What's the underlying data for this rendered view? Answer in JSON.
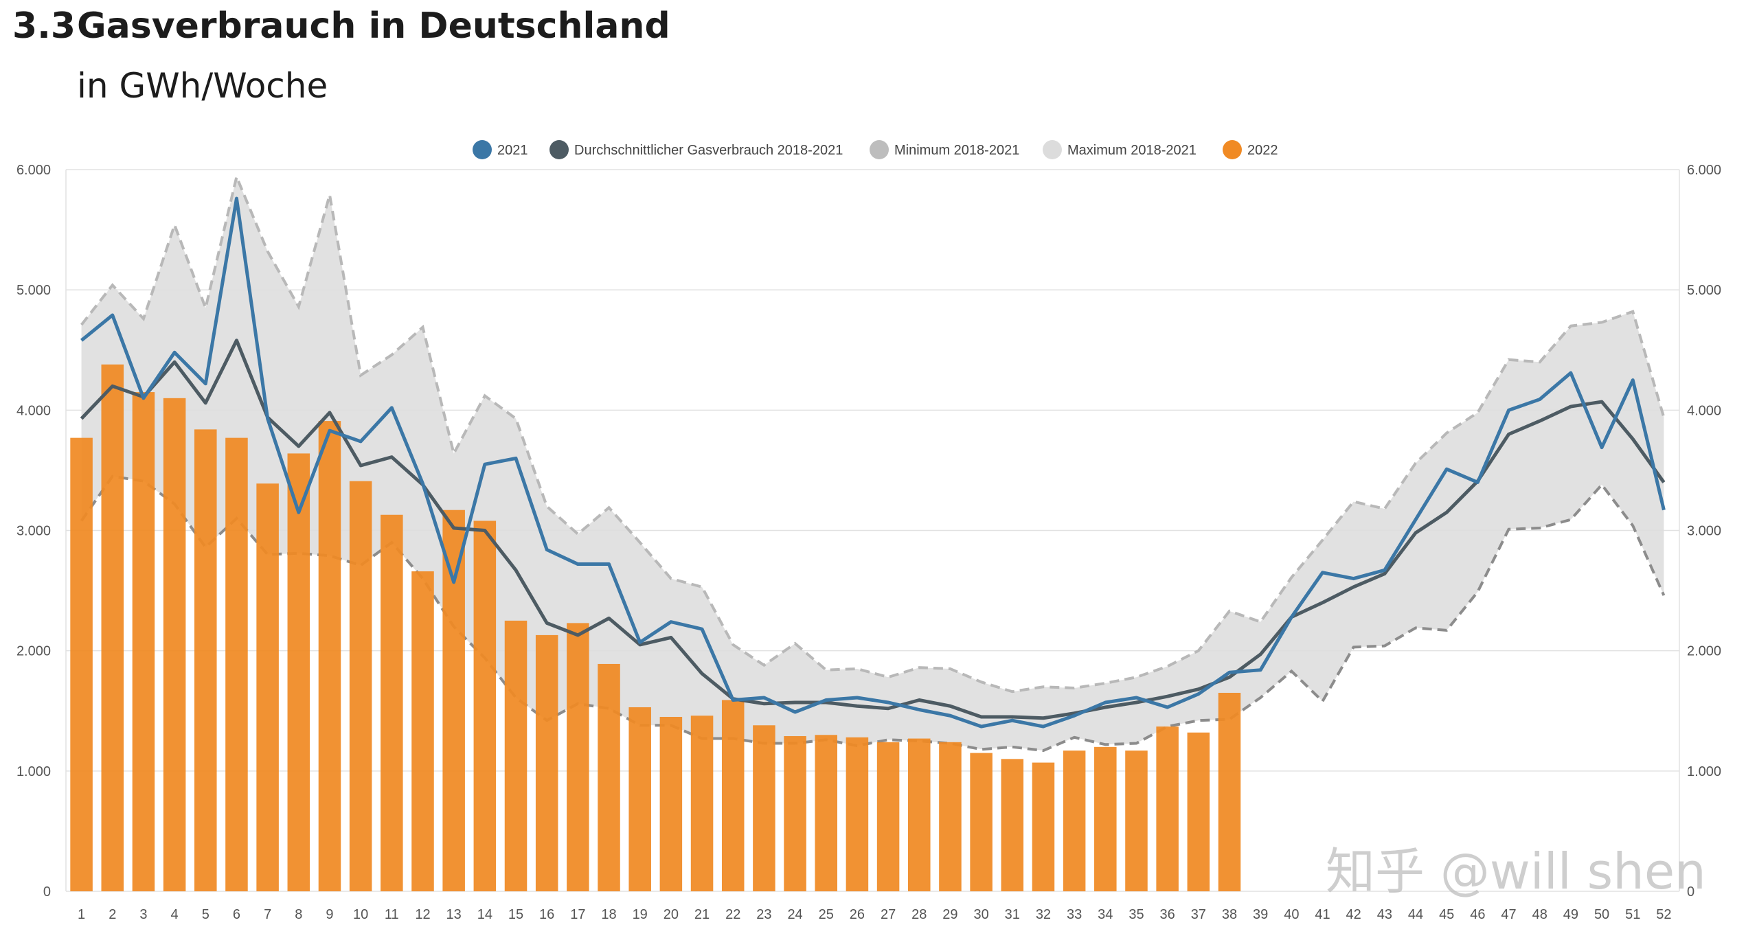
{
  "header": {
    "number": "3.3",
    "title": "Gasverbrauch in Deutschland",
    "subtitle": "in GWh/Woche"
  },
  "watermark": "知乎 @will shen",
  "colors": {
    "s2021": "#3b77a6",
    "avg": "#4d5b63",
    "min": "#bdbdbd",
    "max": "#dcdcdc",
    "s2022": "#f08a24",
    "band": "#dedede",
    "grid": "#e2e2e2",
    "axis_text": "#555555"
  },
  "chart_data": {
    "type": "bar",
    "legend_position": "top-center",
    "grid": true,
    "ylim": [
      0,
      6000
    ],
    "yticks": [
      "0",
      "1.000",
      "2.000",
      "3.000",
      "4.000",
      "5.000",
      "6.000"
    ],
    "ytick_values": [
      0,
      1000,
      2000,
      3000,
      4000,
      5000,
      6000
    ],
    "x": [
      "1",
      "2",
      "3",
      "4",
      "5",
      "6",
      "7",
      "8",
      "9",
      "10",
      "11",
      "12",
      "13",
      "14",
      "15",
      "16",
      "17",
      "18",
      "19",
      "20",
      "21",
      "22",
      "23",
      "24",
      "25",
      "26",
      "27",
      "28",
      "29",
      "30",
      "31",
      "32",
      "33",
      "34",
      "35",
      "36",
      "37",
      "38",
      "39",
      "40",
      "41",
      "42",
      "43",
      "44",
      "45",
      "46",
      "47",
      "48",
      "49",
      "50",
      "51",
      "52"
    ],
    "series": [
      {
        "name": "2021",
        "kind": "line",
        "values": [
          4580,
          4790,
          4100,
          4480,
          4220,
          5760,
          3930,
          3150,
          3830,
          3740,
          4020,
          3390,
          2570,
          3550,
          3600,
          2840,
          2720,
          2720,
          2070,
          2240,
          2180,
          1590,
          1610,
          1490,
          1590,
          1610,
          1570,
          1510,
          1460,
          1370,
          1420,
          1370,
          1460,
          1570,
          1610,
          1530,
          1640,
          1820,
          1840,
          2280,
          2650,
          2600,
          2670,
          3090,
          3510,
          3400,
          4000,
          4090,
          4310,
          3690,
          4250,
          3170
        ]
      },
      {
        "name": "Durchschnittlicher Gasverbrauch 2018-2021",
        "kind": "line",
        "values": [
          3930,
          4200,
          4110,
          4400,
          4060,
          4580,
          3940,
          3700,
          3980,
          3540,
          3610,
          3380,
          3020,
          3000,
          2670,
          2230,
          2130,
          2270,
          2050,
          2110,
          1810,
          1600,
          1560,
          1570,
          1570,
          1540,
          1520,
          1590,
          1540,
          1450,
          1450,
          1440,
          1480,
          1530,
          1570,
          1620,
          1680,
          1780,
          1970,
          2280,
          2400,
          2530,
          2640,
          2980,
          3150,
          3410,
          3800,
          3910,
          4030,
          4070,
          3760,
          3400
        ]
      },
      {
        "name": "Minimum 2018-2021",
        "kind": "band-min",
        "values": [
          3080,
          3450,
          3410,
          3220,
          2860,
          3100,
          2800,
          2810,
          2790,
          2710,
          2900,
          2600,
          2200,
          1940,
          1610,
          1420,
          1560,
          1520,
          1380,
          1380,
          1270,
          1270,
          1230,
          1230,
          1260,
          1210,
          1260,
          1250,
          1230,
          1180,
          1200,
          1170,
          1280,
          1220,
          1230,
          1370,
          1420,
          1430,
          1610,
          1830,
          1580,
          2030,
          2040,
          2190,
          2170,
          2490,
          3010,
          3020,
          3090,
          3380,
          3040,
          2460
        ]
      },
      {
        "name": "Maximum 2018-2021",
        "kind": "band-max",
        "values": [
          4710,
          5040,
          4760,
          5540,
          4850,
          5940,
          5320,
          4860,
          5790,
          4290,
          4460,
          4690,
          3640,
          4120,
          3930,
          3200,
          2970,
          3190,
          2900,
          2600,
          2530,
          2050,
          1880,
          2060,
          1840,
          1850,
          1780,
          1860,
          1850,
          1740,
          1660,
          1700,
          1690,
          1730,
          1780,
          1870,
          2000,
          2330,
          2240,
          2610,
          2920,
          3240,
          3180,
          3560,
          3810,
          3980,
          4420,
          4400,
          4700,
          4730,
          4820,
          3940
        ]
      },
      {
        "name": "2022",
        "kind": "bar",
        "values": [
          3770,
          4380,
          4150,
          4100,
          3840,
          3770,
          3390,
          3640,
          3910,
          3410,
          3130,
          2660,
          3170,
          3080,
          2250,
          2130,
          2230,
          1890,
          1530,
          1450,
          1460,
          1590,
          1380,
          1290,
          1300,
          1280,
          1240,
          1270,
          1240,
          1150,
          1100,
          1070,
          1170,
          1200,
          1170,
          1370,
          1320,
          1650,
          null,
          null,
          null,
          null,
          null,
          null,
          null,
          null,
          null,
          null,
          null,
          null,
          null,
          null
        ]
      }
    ]
  }
}
